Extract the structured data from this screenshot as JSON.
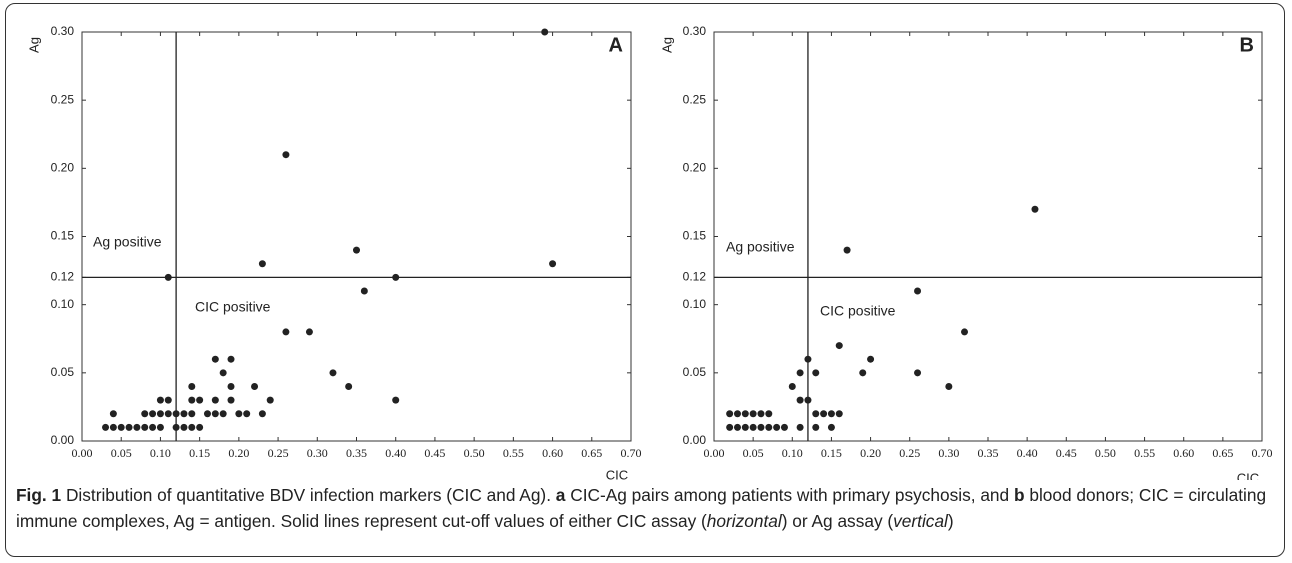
{
  "chart_data": [
    {
      "type": "scatter",
      "panel": "A",
      "x_label": "CIC",
      "y_label": "Ag",
      "annotations": [
        "Ag positive",
        "CIC positive"
      ],
      "cutoff_x": 0.12,
      "cutoff_y": 0.12,
      "color": "#222222",
      "x": [
        0.03,
        0.04,
        0.05,
        0.06,
        0.07,
        0.08,
        0.09,
        0.1,
        0.12,
        0.13,
        0.14,
        0.15,
        0.04,
        0.08,
        0.09,
        0.1,
        0.11,
        0.12,
        0.13,
        0.14,
        0.16,
        0.17,
        0.18,
        0.2,
        0.21,
        0.23,
        0.1,
        0.11,
        0.14,
        0.15,
        0.17,
        0.19,
        0.24,
        0.4,
        0.14,
        0.19,
        0.22,
        0.34,
        0.18,
        0.32,
        0.17,
        0.19,
        0.26,
        0.29,
        0.36,
        0.11,
        0.4,
        0.23,
        0.6,
        0.35,
        0.26,
        0.59
      ],
      "y": [
        0.01,
        0.01,
        0.01,
        0.01,
        0.01,
        0.01,
        0.01,
        0.01,
        0.01,
        0.01,
        0.01,
        0.01,
        0.02,
        0.02,
        0.02,
        0.02,
        0.02,
        0.02,
        0.02,
        0.02,
        0.02,
        0.02,
        0.02,
        0.02,
        0.02,
        0.02,
        0.03,
        0.03,
        0.03,
        0.03,
        0.03,
        0.03,
        0.03,
        0.03,
        0.04,
        0.04,
        0.04,
        0.04,
        0.05,
        0.05,
        0.06,
        0.06,
        0.08,
        0.08,
        0.11,
        0.12,
        0.12,
        0.13,
        0.13,
        0.14,
        0.21,
        0.3
      ],
      "xlim": [
        0,
        0.7
      ],
      "ylim": [
        0,
        0.3
      ],
      "xticks": [
        {
          "value": 0,
          "label": "0.00"
        },
        {
          "value": 0.05,
          "label": "0.05"
        },
        {
          "value": 0.1,
          "label": "0.10"
        },
        {
          "value": 0.15,
          "label": "0.15"
        },
        {
          "value": 0.2,
          "label": "0.20"
        },
        {
          "value": 0.25,
          "label": "0.25"
        },
        {
          "value": 0.3,
          "label": "0.30"
        },
        {
          "value": 0.35,
          "label": "0.35"
        },
        {
          "value": 0.4,
          "label": "0.40"
        },
        {
          "value": 0.45,
          "label": "0.45"
        },
        {
          "value": 0.5,
          "label": "0.50"
        },
        {
          "value": 0.55,
          "label": "0.55"
        },
        {
          "value": 0.6,
          "label": "0.60"
        },
        {
          "value": 0.65,
          "label": "0.65"
        },
        {
          "value": 0.7,
          "label": "0.70"
        }
      ],
      "yticks": [
        {
          "value": 0,
          "label": "0.00"
        },
        {
          "value": 0.05,
          "label": "0.05"
        },
        {
          "value": 0.1,
          "label": "0.10"
        },
        {
          "value": 0.12,
          "label": "0.12"
        },
        {
          "value": 0.15,
          "label": "0.15"
        },
        {
          "value": 0.2,
          "label": "0.20"
        },
        {
          "value": 0.25,
          "label": "0.25"
        },
        {
          "value": 0.3,
          "label": "0.30"
        }
      ]
    },
    {
      "type": "scatter",
      "panel": "B",
      "x_label": "CIC",
      "y_label": "Ag",
      "annotations": [
        "Ag positive",
        "CIC positive"
      ],
      "cutoff_x": 0.12,
      "cutoff_y": 0.12,
      "color": "#222222",
      "x": [
        0.02,
        0.03,
        0.04,
        0.05,
        0.06,
        0.07,
        0.08,
        0.09,
        0.11,
        0.13,
        0.15,
        0.02,
        0.03,
        0.04,
        0.05,
        0.06,
        0.07,
        0.13,
        0.14,
        0.15,
        0.16,
        0.11,
        0.12,
        0.1,
        0.3,
        0.11,
        0.13,
        0.19,
        0.26,
        0.12,
        0.2,
        0.16,
        0.32,
        0.26,
        0.17,
        0.41
      ],
      "y": [
        0.01,
        0.01,
        0.01,
        0.01,
        0.01,
        0.01,
        0.01,
        0.01,
        0.01,
        0.01,
        0.01,
        0.02,
        0.02,
        0.02,
        0.02,
        0.02,
        0.02,
        0.02,
        0.02,
        0.02,
        0.02,
        0.03,
        0.03,
        0.04,
        0.04,
        0.05,
        0.05,
        0.05,
        0.05,
        0.06,
        0.06,
        0.07,
        0.08,
        0.11,
        0.14,
        0.17
      ],
      "xlim": [
        0,
        0.7
      ],
      "ylim": [
        0,
        0.3
      ],
      "xticks": [
        {
          "value": 0,
          "label": "0.00"
        },
        {
          "value": 0.05,
          "label": "0.05"
        },
        {
          "value": 0.1,
          "label": "0.10"
        },
        {
          "value": 0.15,
          "label": "0.15"
        },
        {
          "value": 0.2,
          "label": "0.20"
        },
        {
          "value": 0.25,
          "label": "0.25"
        },
        {
          "value": 0.3,
          "label": "0.30"
        },
        {
          "value": 0.35,
          "label": "0.35"
        },
        {
          "value": 0.4,
          "label": "0.40"
        },
        {
          "value": 0.45,
          "label": "0.45"
        },
        {
          "value": 0.5,
          "label": "0.50"
        },
        {
          "value": 0.55,
          "label": "0.55"
        },
        {
          "value": 0.6,
          "label": "0.60"
        },
        {
          "value": 0.65,
          "label": "0.65"
        },
        {
          "value": 0.7,
          "label": "0.70"
        }
      ],
      "yticks": [
        {
          "value": 0,
          "label": "0.00"
        },
        {
          "value": 0.05,
          "label": "0.05"
        },
        {
          "value": 0.1,
          "label": "0.10"
        },
        {
          "value": 0.12,
          "label": "0.12"
        },
        {
          "value": 0.15,
          "label": "0.15"
        },
        {
          "value": 0.2,
          "label": "0.20"
        },
        {
          "value": 0.25,
          "label": "0.25"
        },
        {
          "value": 0.3,
          "label": "0.30"
        }
      ]
    }
  ],
  "caption": {
    "parts": [
      "Fig. 1",
      " Distribution of quantitative BDV infection markers (CIC and Ag). ",
      "a",
      " CIC-Ag pairs among patients with primary psychosis, and ",
      "b",
      " blood donors; CIC = circulating immune complexes, Ag = antigen. Solid lines represent cut-off values of either CIC assay (",
      "horizontal",
      ") or Ag assay (",
      "vertical",
      ")"
    ]
  }
}
